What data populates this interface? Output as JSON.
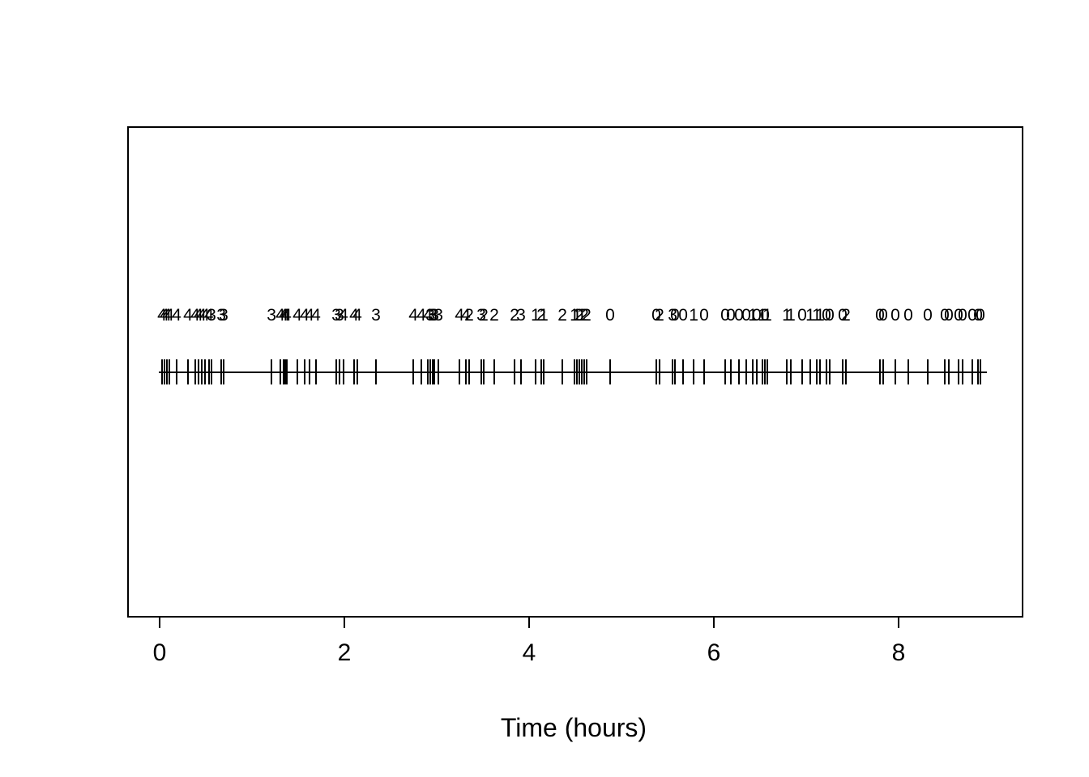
{
  "figure": {
    "background_color": "#ffffff",
    "foreground_color": "#000000"
  },
  "chart_data": {
    "type": "scatter",
    "subtype": "event-rug-timeline",
    "title": "",
    "xlabel": "Time (hours)",
    "ylabel": "",
    "xlim": [
      0,
      9.2
    ],
    "x_ticks": [
      0,
      2,
      4,
      6,
      8
    ],
    "x_tick_labels": [
      "0",
      "2",
      "4",
      "6",
      "8"
    ],
    "grid": false,
    "legend": false,
    "description": "Horizontal timeline with a short vertical tick at each event time; a small integer count (0-4) is printed above each event tick.",
    "events": [
      {
        "t": 0.026,
        "label": "4"
      },
      {
        "t": 0.053,
        "label": "4"
      },
      {
        "t": 0.079,
        "label": "4"
      },
      {
        "t": 0.105,
        "label": "4"
      },
      {
        "t": 0.184,
        "label": "4"
      },
      {
        "t": 0.307,
        "label": "4"
      },
      {
        "t": 0.386,
        "label": "4"
      },
      {
        "t": 0.421,
        "label": "4"
      },
      {
        "t": 0.456,
        "label": "4"
      },
      {
        "t": 0.491,
        "label": "4"
      },
      {
        "t": 0.535,
        "label": "4"
      },
      {
        "t": 0.561,
        "label": "3"
      },
      {
        "t": 0.667,
        "label": "3"
      },
      {
        "t": 0.693,
        "label": "3"
      },
      {
        "t": 1.211,
        "label": "3"
      },
      {
        "t": 1.307,
        "label": "4"
      },
      {
        "t": 1.342,
        "label": "4"
      },
      {
        "t": 1.36,
        "label": "4"
      },
      {
        "t": 1.377,
        "label": "4"
      },
      {
        "t": 1.491,
        "label": "4"
      },
      {
        "t": 1.57,
        "label": "4"
      },
      {
        "t": 1.623,
        "label": "4"
      },
      {
        "t": 1.693,
        "label": "4"
      },
      {
        "t": 1.912,
        "label": "3"
      },
      {
        "t": 1.947,
        "label": "3"
      },
      {
        "t": 1.991,
        "label": "4"
      },
      {
        "t": 2.105,
        "label": "4"
      },
      {
        "t": 2.14,
        "label": "4"
      },
      {
        "t": 2.342,
        "label": "3"
      },
      {
        "t": 2.746,
        "label": "4"
      },
      {
        "t": 2.833,
        "label": "4"
      },
      {
        "t": 2.904,
        "label": "4"
      },
      {
        "t": 2.93,
        "label": "3"
      },
      {
        "t": 2.956,
        "label": "3"
      },
      {
        "t": 2.974,
        "label": "3"
      },
      {
        "t": 3.018,
        "label": "3"
      },
      {
        "t": 3.246,
        "label": "4"
      },
      {
        "t": 3.316,
        "label": "4"
      },
      {
        "t": 3.351,
        "label": "2"
      },
      {
        "t": 3.482,
        "label": "3"
      },
      {
        "t": 3.509,
        "label": "2"
      },
      {
        "t": 3.623,
        "label": "2"
      },
      {
        "t": 3.842,
        "label": "2"
      },
      {
        "t": 3.912,
        "label": "3"
      },
      {
        "t": 4.07,
        "label": "1"
      },
      {
        "t": 4.132,
        "label": "2"
      },
      {
        "t": 4.158,
        "label": "1"
      },
      {
        "t": 4.36,
        "label": "2"
      },
      {
        "t": 4.491,
        "label": "1"
      },
      {
        "t": 4.518,
        "label": "1"
      },
      {
        "t": 4.544,
        "label": "2"
      },
      {
        "t": 4.57,
        "label": "1"
      },
      {
        "t": 4.596,
        "label": "2"
      },
      {
        "t": 4.623,
        "label": "2"
      },
      {
        "t": 4.877,
        "label": "0"
      },
      {
        "t": 5.377,
        "label": "0"
      },
      {
        "t": 5.412,
        "label": "2"
      },
      {
        "t": 5.553,
        "label": "3"
      },
      {
        "t": 5.579,
        "label": "0"
      },
      {
        "t": 5.667,
        "label": "0"
      },
      {
        "t": 5.781,
        "label": "1"
      },
      {
        "t": 5.895,
        "label": "0"
      },
      {
        "t": 6.123,
        "label": "0"
      },
      {
        "t": 6.184,
        "label": "0"
      },
      {
        "t": 6.272,
        "label": "0"
      },
      {
        "t": 6.351,
        "label": "0"
      },
      {
        "t": 6.421,
        "label": "1"
      },
      {
        "t": 6.465,
        "label": "0"
      },
      {
        "t": 6.526,
        "label": "1"
      },
      {
        "t": 6.553,
        "label": "0"
      },
      {
        "t": 6.579,
        "label": "1"
      },
      {
        "t": 6.789,
        "label": "1"
      },
      {
        "t": 6.833,
        "label": "1"
      },
      {
        "t": 6.956,
        "label": "0"
      },
      {
        "t": 7.044,
        "label": "1"
      },
      {
        "t": 7.114,
        "label": "1"
      },
      {
        "t": 7.149,
        "label": "1"
      },
      {
        "t": 7.219,
        "label": "0"
      },
      {
        "t": 7.254,
        "label": "0"
      },
      {
        "t": 7.395,
        "label": "0"
      },
      {
        "t": 7.43,
        "label": "2"
      },
      {
        "t": 7.798,
        "label": "0"
      },
      {
        "t": 7.833,
        "label": "0"
      },
      {
        "t": 7.965,
        "label": "0"
      },
      {
        "t": 8.105,
        "label": "0"
      },
      {
        "t": 8.316,
        "label": "0"
      },
      {
        "t": 8.5,
        "label": "0"
      },
      {
        "t": 8.544,
        "label": "0"
      },
      {
        "t": 8.649,
        "label": "0"
      },
      {
        "t": 8.693,
        "label": "0"
      },
      {
        "t": 8.798,
        "label": "0"
      },
      {
        "t": 8.86,
        "label": "0"
      },
      {
        "t": 8.886,
        "label": "0"
      }
    ]
  }
}
